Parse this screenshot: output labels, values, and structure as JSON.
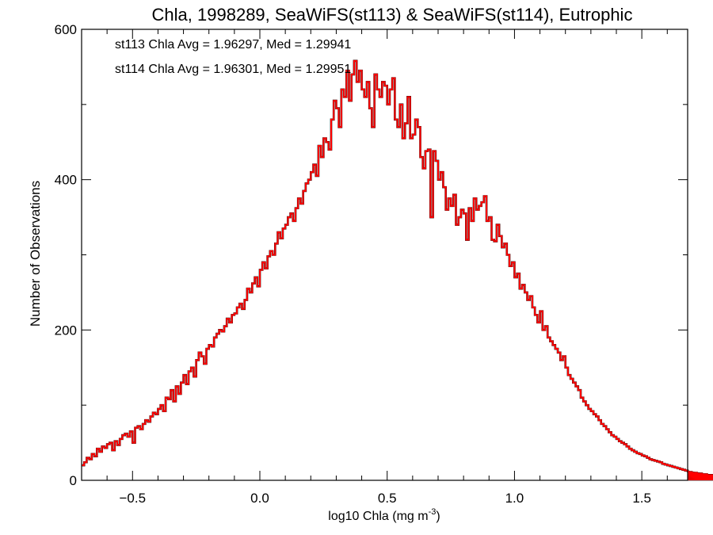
{
  "chart_data": {
    "type": "histogram-step",
    "title": "Chla, 1998289, SeaWiFS(st113) & SeaWiFS(st114), Eutrophic",
    "xlabel": "log10 Chla (mg m",
    "xlabel_sup": "-3",
    "xlabel_close": ")",
    "ylabel": "Number of Observations",
    "xlim": [
      -0.7,
      1.68
    ],
    "ylim": [
      0,
      600
    ],
    "xticks": [
      -0.5,
      0.0,
      0.5,
      1.0,
      1.5
    ],
    "xtick_labels": [
      "−0.5",
      "0.0",
      "0.5",
      "1.0",
      "1.5"
    ],
    "yticks": [
      0,
      200,
      400,
      600
    ],
    "ytick_labels": [
      "0",
      "200",
      "400",
      "600"
    ],
    "annotations": [
      {
        "text": "st113 Chla Avg = 1.96297, Med = 1.29941",
        "color": "#000000"
      },
      {
        "text": "st114 Chla Avg = 1.96301, Med = 1.29951",
        "color": "#ff0000"
      }
    ],
    "bin_start": -0.7,
    "bin_width": 0.01,
    "series": [
      {
        "color": "#000000",
        "values": [
          20,
          24,
          30,
          28,
          35,
          32,
          42,
          38,
          45,
          43,
          48,
          50,
          40,
          52,
          47,
          55,
          60,
          62,
          58,
          65,
          50,
          70,
          72,
          68,
          75,
          80,
          78,
          85,
          90,
          88,
          95,
          100,
          92,
          110,
          108,
          120,
          105,
          125,
          115,
          130,
          140,
          128,
          145,
          150,
          138,
          160,
          170,
          165,
          155,
          175,
          180,
          178,
          190,
          195,
          200,
          198,
          205,
          215,
          210,
          220,
          222,
          230,
          235,
          228,
          240,
          255,
          250,
          262,
          270,
          258,
          280,
          290,
          282,
          298,
          305,
          300,
          315,
          330,
          322,
          335,
          340,
          350,
          355,
          345,
          362,
          375,
          368,
          385,
          395,
          400,
          410,
          420,
          405,
          445,
          430,
          455,
          450,
          440,
          480,
          505,
          495,
          470,
          520,
          510,
          545,
          505,
          540,
          558,
          530,
          545,
          520,
          510,
          530,
          495,
          470,
          540,
          520,
          510,
          530,
          525,
          500,
          520,
          535,
          480,
          470,
          500,
          455,
          475,
          510,
          455,
          460,
          480,
          470,
          430,
          415,
          438,
          440,
          350,
          438,
          425,
          400,
          410,
          390,
          360,
          375,
          365,
          380,
          340,
          350,
          360,
          355,
          320,
          362,
          345,
          375,
          360,
          365,
          370,
          378,
          345,
          350,
          320,
          318,
          340,
          325,
          310,
          315,
          300,
          285,
          290,
          270,
          275,
          255,
          260,
          250,
          240,
          245,
          230,
          220,
          210,
          225,
          200,
          205,
          190,
          185,
          180,
          175,
          170,
          160,
          165,
          150,
          140,
          135,
          130,
          125,
          120,
          110,
          105,
          100,
          95,
          92,
          88,
          85,
          80,
          75,
          72,
          68,
          64,
          60,
          58,
          55,
          52,
          50,
          48,
          45,
          42,
          40,
          38,
          36,
          35,
          33,
          32,
          30,
          28,
          27,
          26,
          25,
          24,
          22,
          21,
          20,
          19,
          18,
          17,
          16,
          15,
          14,
          13,
          12,
          11,
          11,
          10,
          10,
          9,
          9,
          8,
          8,
          7,
          7,
          6,
          6,
          6,
          5,
          5,
          5,
          4,
          4,
          4,
          4,
          3,
          3,
          3,
          3,
          3,
          2,
          2,
          2,
          2,
          2,
          2,
          2,
          2,
          1,
          1,
          1
        ]
      },
      {
        "color": "#ff0000",
        "values": [
          20,
          24,
          30,
          28,
          35,
          32,
          42,
          38,
          45,
          43,
          48,
          50,
          40,
          52,
          47,
          55,
          60,
          62,
          58,
          65,
          50,
          70,
          72,
          68,
          75,
          80,
          78,
          85,
          90,
          88,
          95,
          100,
          92,
          110,
          108,
          120,
          105,
          125,
          115,
          130,
          140,
          128,
          145,
          150,
          138,
          160,
          170,
          165,
          155,
          175,
          180,
          178,
          190,
          195,
          200,
          198,
          205,
          215,
          210,
          220,
          222,
          230,
          235,
          228,
          240,
          255,
          250,
          262,
          270,
          258,
          280,
          290,
          282,
          298,
          305,
          300,
          315,
          330,
          322,
          335,
          340,
          350,
          355,
          345,
          362,
          375,
          368,
          385,
          395,
          400,
          410,
          420,
          405,
          445,
          430,
          455,
          450,
          440,
          480,
          505,
          495,
          470,
          520,
          510,
          545,
          505,
          540,
          558,
          530,
          545,
          520,
          510,
          530,
          495,
          470,
          540,
          520,
          510,
          530,
          525,
          500,
          520,
          535,
          480,
          470,
          500,
          455,
          475,
          510,
          455,
          460,
          480,
          470,
          430,
          415,
          438,
          440,
          350,
          438,
          425,
          400,
          410,
          390,
          360,
          375,
          365,
          380,
          340,
          350,
          360,
          355,
          320,
          362,
          345,
          375,
          360,
          365,
          370,
          378,
          345,
          350,
          320,
          318,
          340,
          325,
          310,
          315,
          300,
          285,
          290,
          270,
          275,
          255,
          260,
          250,
          240,
          245,
          230,
          220,
          210,
          225,
          200,
          205,
          190,
          185,
          180,
          175,
          170,
          160,
          165,
          150,
          140,
          135,
          130,
          125,
          120,
          110,
          105,
          100,
          95,
          92,
          88,
          85,
          80,
          75,
          72,
          68,
          64,
          60,
          58,
          55,
          52,
          50,
          48,
          45,
          42,
          40,
          38,
          36,
          35,
          33,
          32,
          30,
          28,
          27,
          26,
          25,
          24,
          22,
          21,
          20,
          19,
          18,
          17,
          16,
          15,
          14,
          13,
          12,
          11,
          11,
          10,
          10,
          9,
          9,
          8,
          8,
          7,
          7,
          6,
          6,
          6,
          5,
          5,
          5,
          4,
          4,
          4,
          4,
          3,
          3,
          3,
          3,
          3,
          2,
          2,
          2,
          2,
          2,
          2,
          2,
          2,
          1,
          1,
          1
        ]
      }
    ]
  }
}
